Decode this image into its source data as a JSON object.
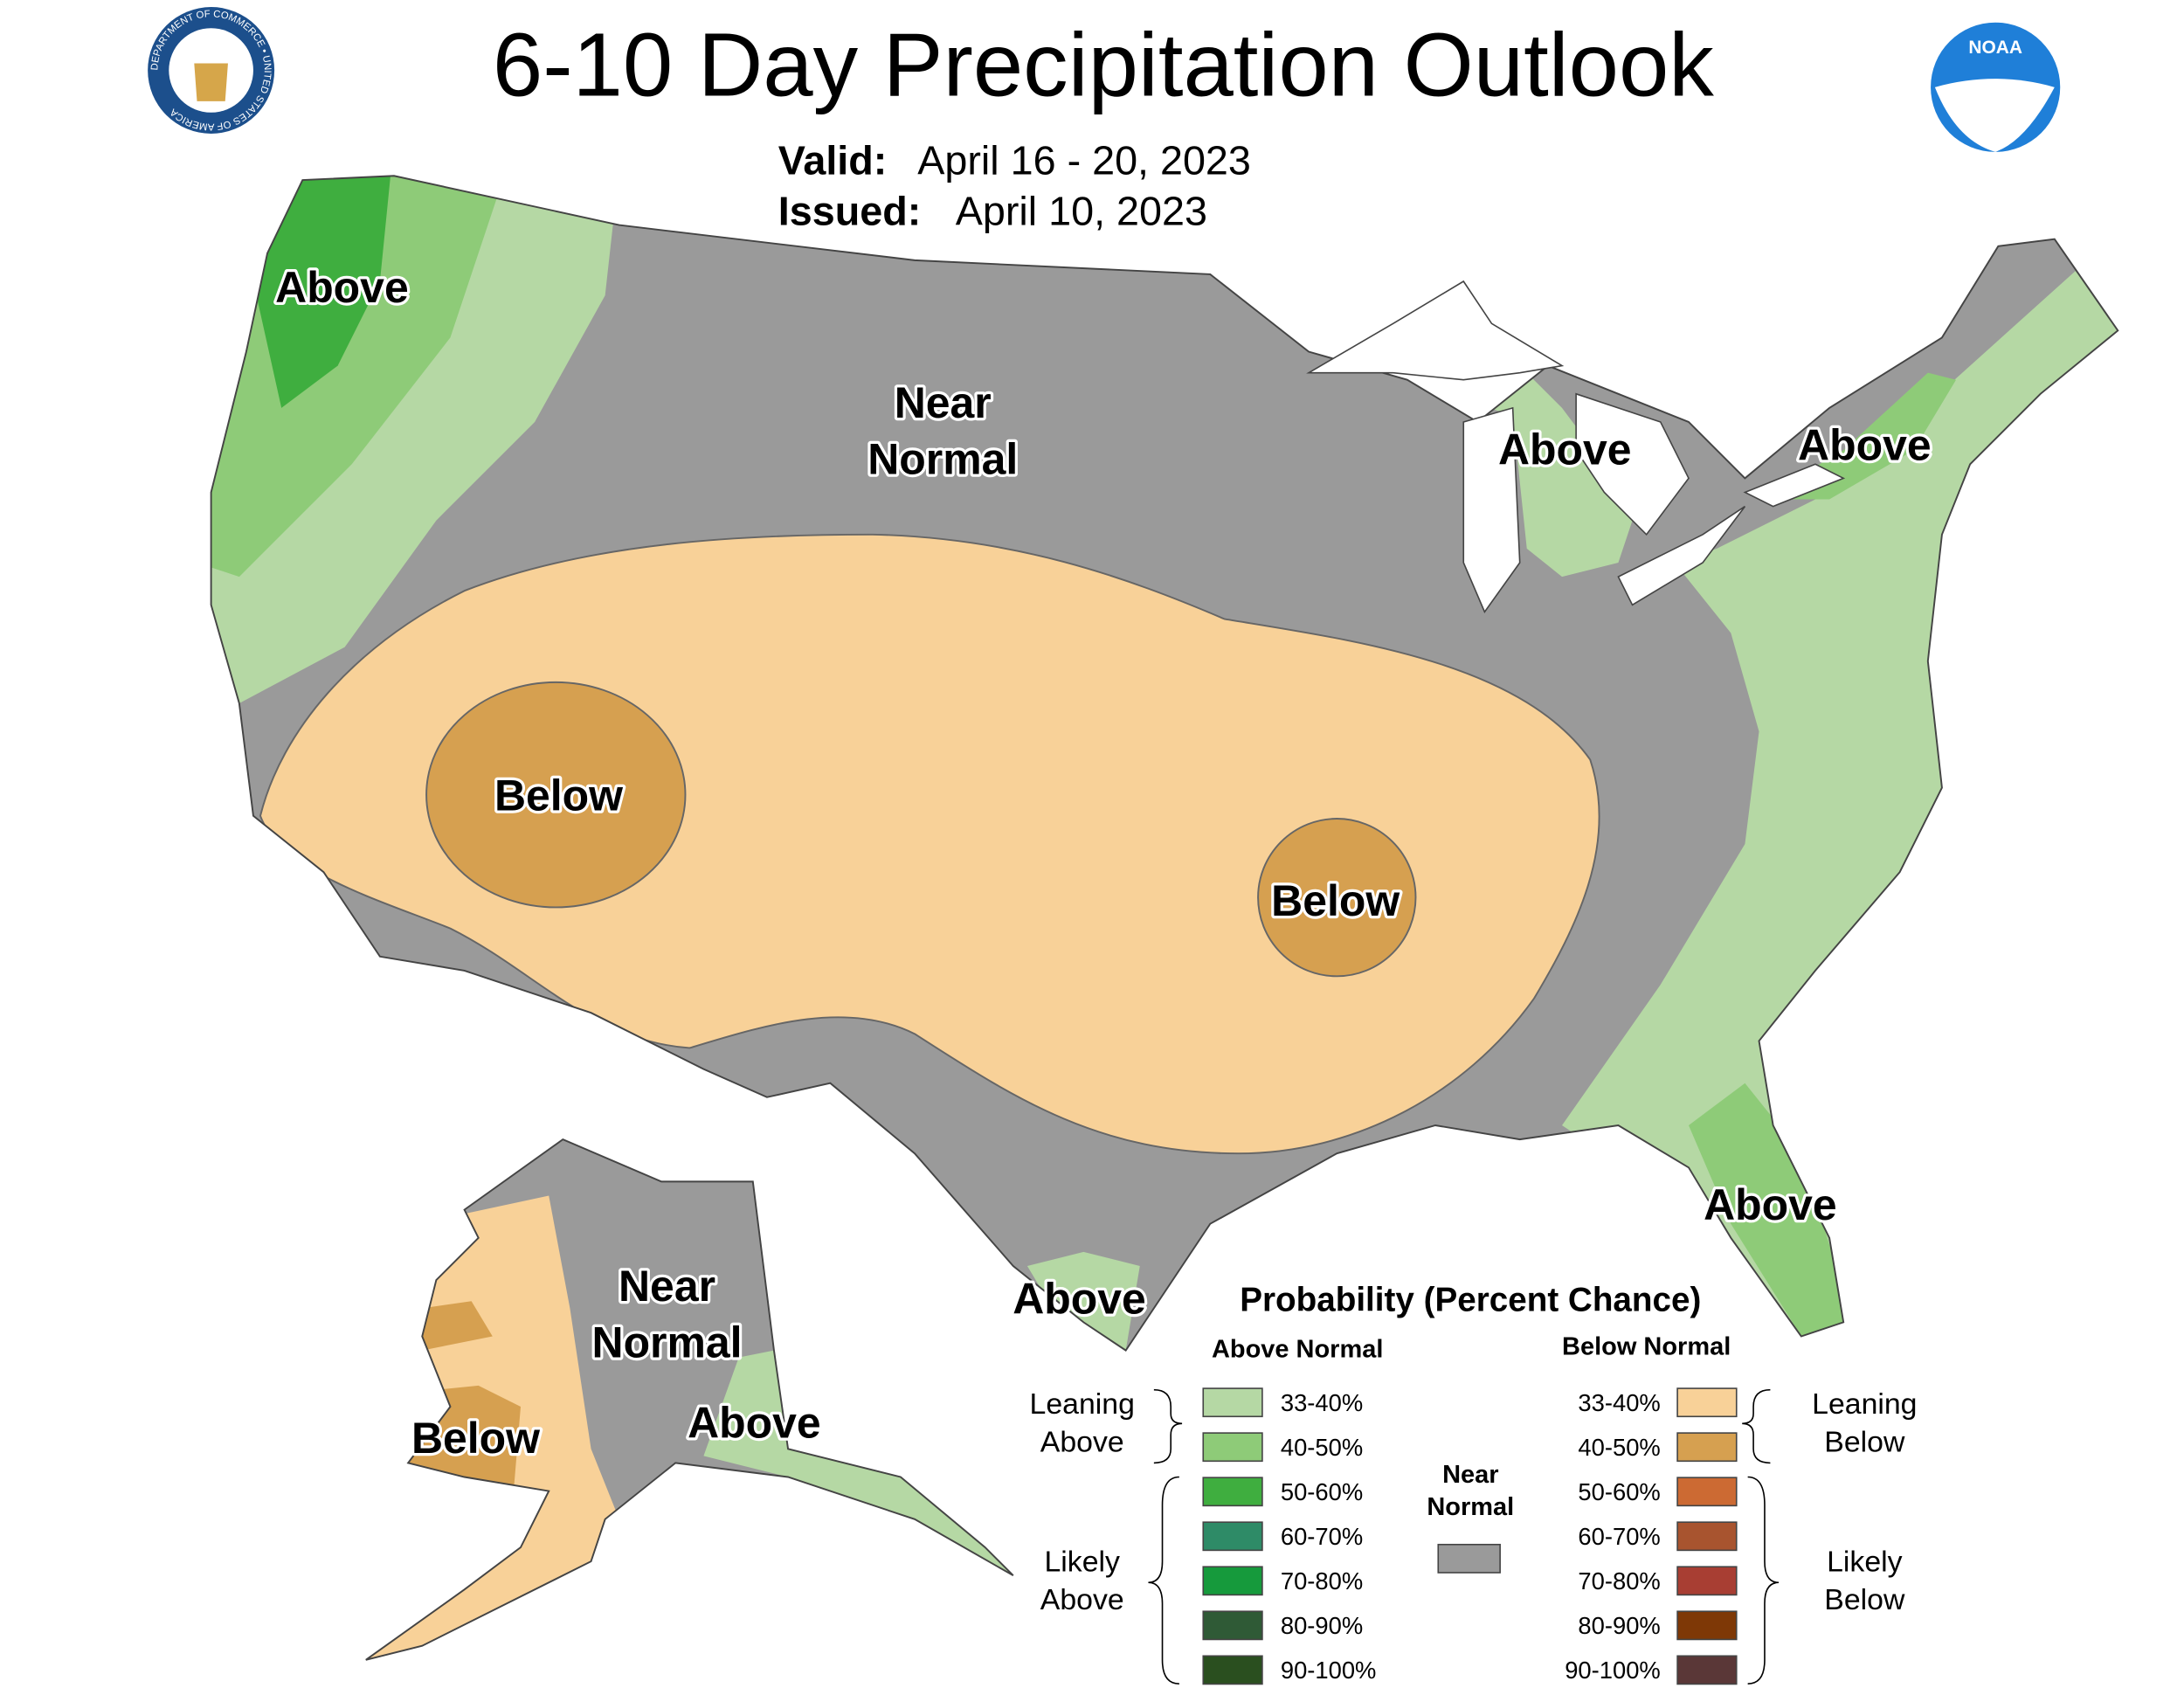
{
  "header": {
    "title": "6-10 Day Precipitation Outlook",
    "valid_label": "Valid:",
    "valid": "April 16 - 20, 2023",
    "issued_label": "Issued:",
    "issued": "April 10, 2023",
    "seal_text": "DEPARTMENT OF COMMERCE • UNITED STATES OF AMERICA",
    "noaa": "NOAA"
  },
  "map_labels": [
    {
      "lines": [
        "Above"
      ]
    },
    {
      "lines": [
        "Near",
        "Normal"
      ]
    },
    {
      "lines": [
        "Above"
      ]
    },
    {
      "lines": [
        "Above"
      ]
    },
    {
      "lines": [
        "Below"
      ]
    },
    {
      "lines": [
        "Below"
      ]
    },
    {
      "lines": [
        "Above"
      ]
    },
    {
      "lines": [
        "Above"
      ]
    },
    {
      "lines": [
        "Near",
        "Normal"
      ]
    },
    {
      "lines": [
        "Below"
      ]
    },
    {
      "lines": [
        "Above"
      ]
    }
  ],
  "legend": {
    "title": "Probability (Percent Chance)",
    "above_header": "Above Normal",
    "below_header": "Below Normal",
    "leaning_above": [
      "Leaning",
      "Above"
    ],
    "likely_above": [
      "Likely",
      "Above"
    ],
    "near_normal": [
      "Near",
      "Normal"
    ],
    "near_normal_color": "#9a9a9a",
    "leaning_below": [
      "Leaning",
      "Below"
    ],
    "likely_below": [
      "Likely",
      "Below"
    ],
    "above": [
      {
        "label": "33-40%",
        "color": "#b5d8a4"
      },
      {
        "label": "40-50%",
        "color": "#8ecb78"
      },
      {
        "label": "50-60%",
        "color": "#3fae3f"
      },
      {
        "label": "60-70%",
        "color": "#2e8b67"
      },
      {
        "label": "70-80%",
        "color": "#169a3c"
      },
      {
        "label": "80-90%",
        "color": "#2f5a36"
      },
      {
        "label": "90-100%",
        "color": "#2a4f1f"
      }
    ],
    "below": [
      {
        "label": "33-40%",
        "color": "#f8d198"
      },
      {
        "label": "40-50%",
        "color": "#d6a050"
      },
      {
        "label": "50-60%",
        "color": "#cc6a33"
      },
      {
        "label": "60-70%",
        "color": "#a8542f"
      },
      {
        "label": "70-80%",
        "color": "#a83e33"
      },
      {
        "label": "80-90%",
        "color": "#7e3806"
      },
      {
        "label": "90-100%",
        "color": "#5a3737"
      }
    ]
  }
}
